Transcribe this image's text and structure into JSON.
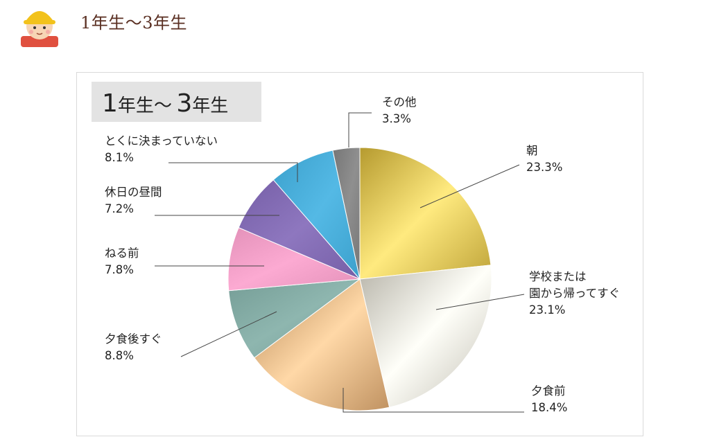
{
  "page": {
    "title": "1年生〜3年生",
    "avatar_icon": "child-yellow-hat-icon"
  },
  "chart_data": {
    "type": "pie",
    "title": "1年生〜 3年生",
    "unit": "%",
    "slices": [
      {
        "label": "朝",
        "value": 23.3,
        "display": "23.3%",
        "color": "#d8bd52"
      },
      {
        "label": "学校または園から帰ってすぐ",
        "label_lines": [
          "学校または",
          "園から帰ってすぐ"
        ],
        "value": 23.1,
        "display": "23.1%",
        "color": "#dad7cc"
      },
      {
        "label": "夕食前",
        "value": 18.4,
        "display": "18.4%",
        "color": "#d9ab7a"
      },
      {
        "label": "夕食後すぐ",
        "value": 8.8,
        "display": "8.8%",
        "color": "#7fa7a0"
      },
      {
        "label": "ねる前",
        "value": 7.8,
        "display": "7.8%",
        "color": "#ed9bc3"
      },
      {
        "label": "休日の昼間",
        "value": 7.2,
        "display": "7.2%",
        "color": "#7f68b0"
      },
      {
        "label": "とくに決まっていない",
        "value": 8.1,
        "display": "8.1%",
        "color": "#45aad6"
      },
      {
        "label": "その他",
        "value": 3.3,
        "display": "3.3%",
        "color": "#808080"
      }
    ]
  }
}
